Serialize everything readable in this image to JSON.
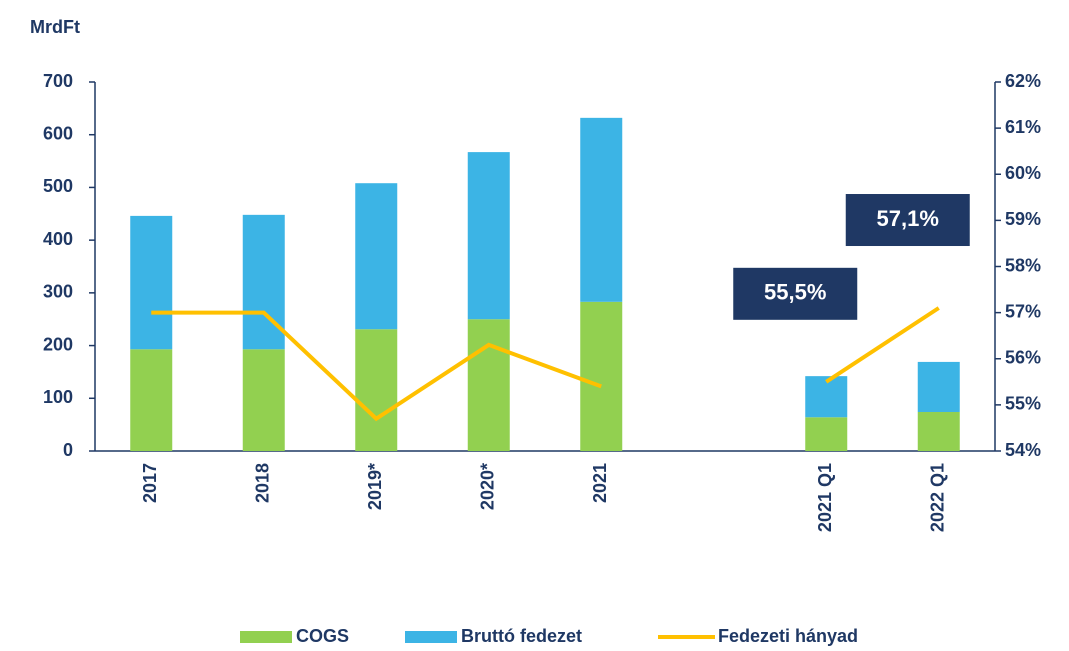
{
  "chart_data": {
    "type": "bar",
    "stacked": true,
    "y_label": "MrdFt",
    "categories": [
      "2017",
      "2018",
      "2019*",
      "2020*",
      "2021",
      null,
      "2021 Q1",
      "2022 Q1"
    ],
    "series": [
      {
        "name": "COGS",
        "color": "#92d050",
        "values": [
          193,
          193,
          231,
          250,
          283,
          null,
          64,
          74
        ]
      },
      {
        "name": "Bruttó fedezet",
        "color": "#3cb4e5",
        "values": [
          253,
          255,
          277,
          317,
          349,
          null,
          78,
          95
        ]
      },
      {
        "name": "Fedezeti hányad",
        "type": "line",
        "axis": "y2",
        "color": "#ffc000",
        "values": [
          57.0,
          57.0,
          54.7,
          56.3,
          55.4,
          null,
          55.5,
          57.1
        ],
        "value_labels": [
          null,
          null,
          null,
          null,
          null,
          null,
          "55,5%",
          "57,1%"
        ]
      }
    ],
    "ylim": [
      0,
      700
    ],
    "yticks": [
      0,
      100,
      200,
      300,
      400,
      500,
      600,
      700
    ],
    "y2lim": [
      54,
      62
    ],
    "y2ticks": [
      {
        "value": 54,
        "label": "54%"
      },
      {
        "value": 55,
        "label": "55%"
      },
      {
        "value": 56,
        "label": "56%"
      },
      {
        "value": 57,
        "label": "57%"
      },
      {
        "value": 58,
        "label": "58%"
      },
      {
        "value": 59,
        "label": "59%"
      },
      {
        "value": 60,
        "label": "60%"
      },
      {
        "value": 61,
        "label": "61%"
      },
      {
        "value": 62,
        "label": "62%"
      }
    ],
    "legend": "bottom"
  }
}
